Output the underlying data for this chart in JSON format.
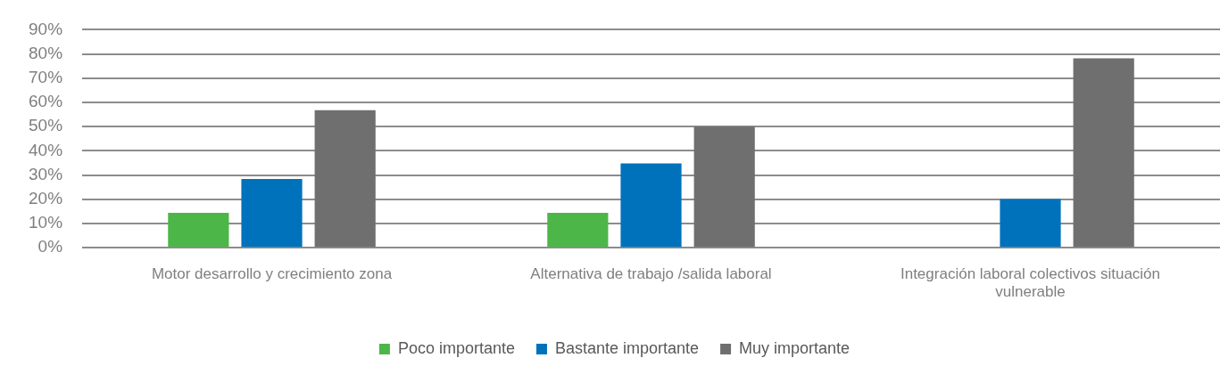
{
  "chart_data": {
    "type": "bar",
    "categories": [
      "Motor desarrollo y crecimiento zona",
      "Alternativa de trabajo /salida laboral",
      "Integración laboral colectivos situación vulnerable"
    ],
    "series": [
      {
        "name": "Poco importante",
        "color": "#4cb648",
        "values": [
          14.4,
          14.4,
          0
        ]
      },
      {
        "name": "Bastante importante",
        "color": "#0072bc",
        "values": [
          28.4,
          34.8,
          20.1
        ]
      },
      {
        "name": "Muy importante",
        "color": "#6f6f6f",
        "values": [
          56.8,
          50,
          78.2
        ]
      }
    ],
    "ylim": [
      0,
      90
    ],
    "yticks": [
      {
        "value": 0,
        "label": "0%"
      },
      {
        "value": 10,
        "label": "10%"
      },
      {
        "value": 20,
        "label": "20%"
      },
      {
        "value": 30,
        "label": "30%"
      },
      {
        "value": 40,
        "label": "40%"
      },
      {
        "value": 50,
        "label": "50%"
      },
      {
        "value": 60,
        "label": "60%"
      },
      {
        "value": 70,
        "label": "70%"
      },
      {
        "value": 80,
        "label": "80%"
      },
      {
        "value": 90,
        "label": "90%"
      }
    ],
    "grid": "y",
    "legend": "bottom"
  }
}
